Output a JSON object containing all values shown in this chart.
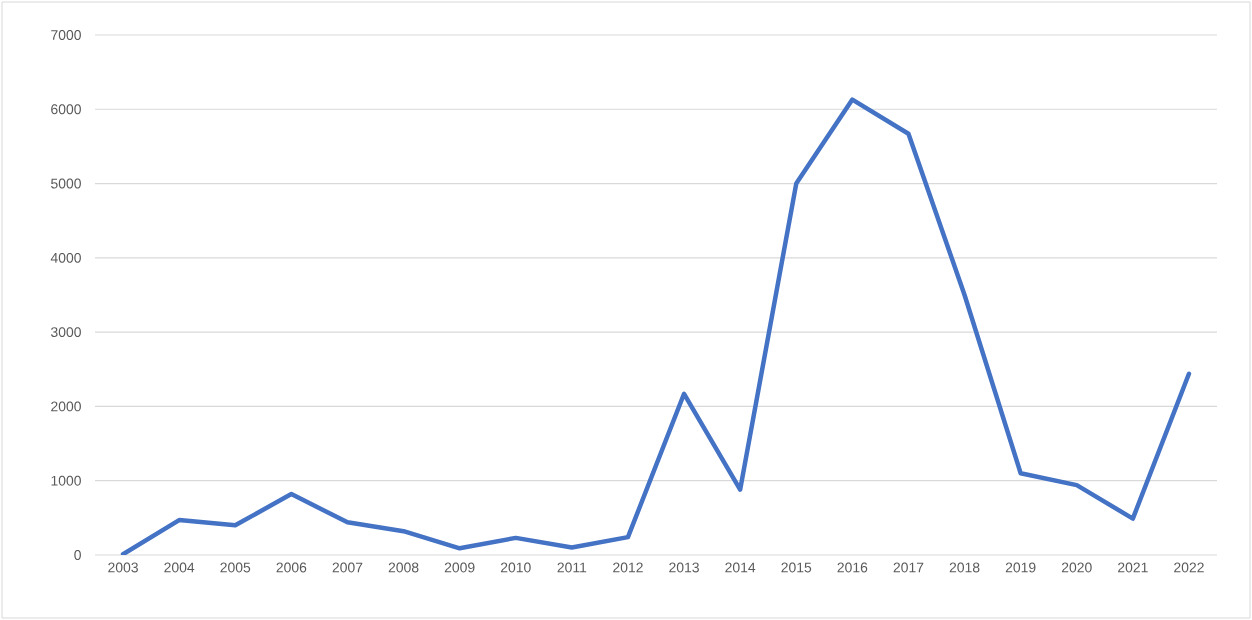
{
  "chart_data": {
    "type": "line",
    "categories": [
      "2003",
      "2004",
      "2005",
      "2006",
      "2007",
      "2008",
      "2009",
      "2010",
      "2011",
      "2012",
      "2013",
      "2014",
      "2015",
      "2016",
      "2017",
      "2018",
      "2019",
      "2020",
      "2021",
      "2022"
    ],
    "series": [
      {
        "color": "#4472c4",
        "values": [
          10,
          470,
          400,
          820,
          440,
          320,
          90,
          230,
          100,
          240,
          2170,
          880,
          5000,
          6130,
          5670,
          3500,
          1100,
          940,
          490,
          2440
        ]
      }
    ],
    "ylim": [
      0,
      7000
    ],
    "yticks": [
      0,
      1000,
      2000,
      3000,
      4000,
      5000,
      6000,
      7000
    ],
    "grid": "y",
    "marker": "none",
    "line_style": "solid"
  }
}
